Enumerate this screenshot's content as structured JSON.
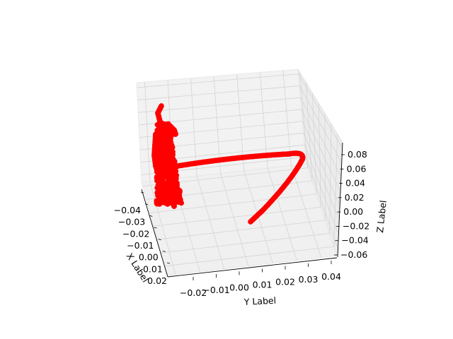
{
  "chart_data": {
    "type": "scatter",
    "projection": "3d",
    "grid": true,
    "xlabel": "X Label",
    "ylabel": "Y Label",
    "zlabel": "Z Label",
    "x_ticks": [
      "−0.04",
      "−0.03",
      "−0.02",
      "−0.01",
      "0.00",
      "0.01",
      "0.02"
    ],
    "y_ticks": [
      "−0.02",
      "−0.01",
      "0.00",
      "0.01",
      "0.02",
      "0.03",
      "0.04"
    ],
    "z_ticks": [
      "0.08",
      "0.06",
      "0.04",
      "0.02",
      "0.00",
      "−0.02",
      "−0.04",
      "−0.06"
    ],
    "series": [
      {
        "color": "#ff0000",
        "marker": "o",
        "description_points": [
          {
            "x": -0.035,
            "y": 0.018,
            "z": -0.025
          },
          {
            "x": -0.03,
            "y": 0.03,
            "z": 0.0
          },
          {
            "x": -0.025,
            "y": 0.038,
            "z": 0.03
          },
          {
            "x": -0.02,
            "y": 0.04,
            "z": 0.06
          },
          {
            "x": -0.02,
            "y": 0.03,
            "z": 0.06
          },
          {
            "x": -0.02,
            "y": 0.01,
            "z": 0.055
          },
          {
            "x": -0.02,
            "y": -0.01,
            "z": 0.05
          },
          {
            "x": -0.02,
            "y": -0.025,
            "z": 0.045
          },
          {
            "x": -0.02,
            "y": -0.03,
            "z": 0.03
          },
          {
            "x": -0.02,
            "y": -0.03,
            "z": -0.02
          },
          {
            "x": -0.02,
            "y": -0.03,
            "z": 0.07
          }
        ]
      }
    ]
  }
}
